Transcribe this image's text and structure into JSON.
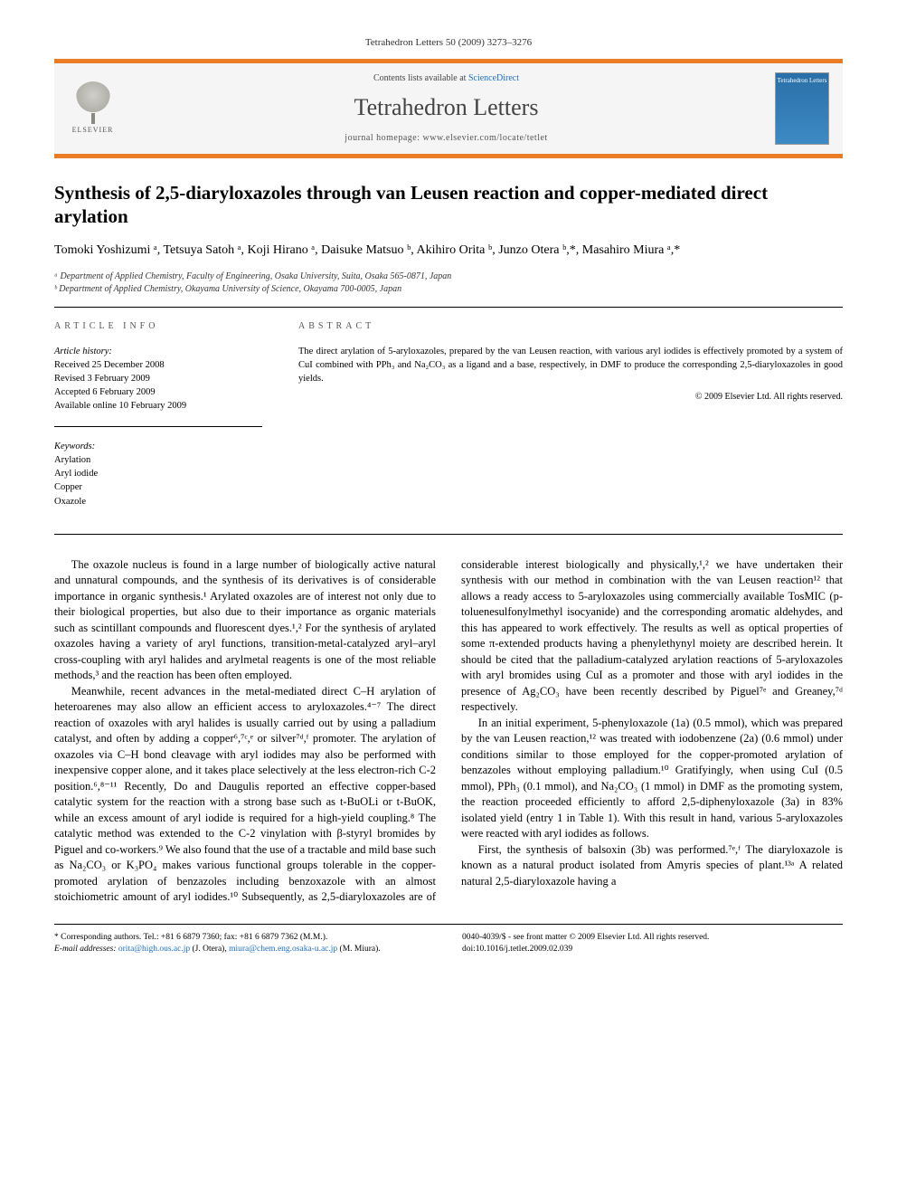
{
  "header": {
    "journal_ref": "Tetrahedron Letters 50 (2009) 3273–3276"
  },
  "banner": {
    "publisher_logo_text": "ELSEVIER",
    "contents_line_prefix": "Contents lists available at ",
    "contents_link": "ScienceDirect",
    "journal_name": "Tetrahedron Letters",
    "homepage_prefix": "journal homepage: ",
    "homepage_url": "www.elsevier.com/locate/tetlet",
    "cover_title": "Tetrahedron Letters",
    "banner_accent_color": "#ea7d25",
    "banner_bg_color": "#f5f5f5",
    "cover_bg_start": "#2a6fa8",
    "cover_bg_end": "#3d8ac5",
    "link_color": "#1d6fc4"
  },
  "article": {
    "title": "Synthesis of 2,5-diaryloxazoles through van Leusen reaction and copper-mediated direct arylation",
    "authors_html": "Tomoki Yoshizumi ᵃ, Tetsuya Satoh ᵃ, Koji Hirano ᵃ, Daisuke Matsuo ᵇ, Akihiro Orita ᵇ, Junzo Otera ᵇ,*, Masahiro Miura ᵃ,*",
    "affiliations": {
      "a": "ᵃ Department of Applied Chemistry, Faculty of Engineering, Osaka University, Suita, Osaka 565-0871, Japan",
      "b": "ᵇ Department of Applied Chemistry, Okayama University of Science, Okayama 700-0005, Japan"
    }
  },
  "info": {
    "heading": "ARTICLE INFO",
    "history_label": "Article history:",
    "received": "Received 25 December 2008",
    "revised": "Revised 3 February 2009",
    "accepted": "Accepted 6 February 2009",
    "online": "Available online 10 February 2009",
    "keywords_label": "Keywords:",
    "keywords": [
      "Arylation",
      "Aryl iodide",
      "Copper",
      "Oxazole"
    ]
  },
  "abstract": {
    "heading": "ABSTRACT",
    "text": "The direct arylation of 5-aryloxazoles, prepared by the van Leusen reaction, with various aryl iodides is effectively promoted by a system of CuI combined with PPh₃ and Na₂CO₃ as a ligand and a base, respectively, in DMF to produce the corresponding 2,5-diaryloxazoles in good yields.",
    "copyright": "© 2009 Elsevier Ltd. All rights reserved."
  },
  "body": {
    "p1": "The oxazole nucleus is found in a large number of biologically active natural and unnatural compounds, and the synthesis of its derivatives is of considerable importance in organic synthesis.¹ Arylated oxazoles are of interest not only due to their biological properties, but also due to their importance as organic materials such as scintillant compounds and fluorescent dyes.¹,² For the synthesis of arylated oxazoles having a variety of aryl functions, transition-metal-catalyzed aryl–aryl cross-coupling with aryl halides and arylmetal reagents is one of the most reliable methods,³ and the reaction has been often employed.",
    "p2": "Meanwhile, recent advances in the metal-mediated direct C–H arylation of heteroarenes may also allow an efficient access to aryloxazoles.⁴⁻⁷ The direct reaction of oxazoles with aryl halides is usually carried out by using a palladium catalyst, and often by adding a copper⁶,⁷ᶜ,ᵉ or silver⁷ᵈ,ᶠ promoter. The arylation of oxazoles via C–H bond cleavage with aryl iodides may also be performed with inexpensive copper alone, and it takes place selectively at the less electron-rich C-2 position.⁶,⁸⁻¹¹ Recently, Do and Daugulis reported an effective copper-based catalytic system for the reaction with a strong base such as t-BuOLi or t-BuOK, while an excess amount of aryl iodide is required for a high-yield coupling.⁸ The catalytic method was extended to the C-2 vinylation with β-styryl bromides by Piguel and co-workers.⁹ We also found that the use of a tractable and mild base such as Na₂CO₃ or K₃PO₄ makes various functional groups tolerable in the copper-promoted arylation of benzazoles including benzoxazole with an almost stoichiometric amount of aryl iodides.¹⁰ Subsequently, as 2,5-diaryloxazoles are of considerable interest biologically and physically,¹,² we have undertaken their synthesis with our method in combination with the van Leusen reaction¹² that allows a ready access to 5-aryloxazoles using commercially available TosMIC (p-toluenesulfonylmethyl isocyanide) and the corresponding aromatic aldehydes, and this has appeared to work effectively. The results as well as optical properties of some π-extended products having a phenylethynyl moiety are described herein. It should be cited that the palladium-catalyzed arylation reactions of 5-aryloxazoles with aryl bromides using CuI as a promoter and those with aryl iodides in the presence of Ag₂CO₃ have been recently described by Piguel⁷ᵉ and Greaney,⁷ᵈ respectively.",
    "p3": "In an initial experiment, 5-phenyloxazole (1a) (0.5 mmol), which was prepared by the van Leusen reaction,¹² was treated with iodobenzene (2a) (0.6 mmol) under conditions similar to those employed for the copper-promoted arylation of benzazoles without employing palladium.¹⁰ Gratifyingly, when using CuI (0.5 mmol), PPh₃ (0.1 mmol), and Na₂CO₃ (1 mmol) in DMF as the promoting system, the reaction proceeded efficiently to afford 2,5-diphenyloxazole (3a) in 83% isolated yield (entry 1 in Table 1). With this result in hand, various 5-aryloxazoles were reacted with aryl iodides as follows.",
    "p4": "First, the synthesis of balsoxin (3b) was performed.⁷ᵉ,ᶠ The diaryloxazole is known as a natural product isolated from Amyris species of plant.¹³ᵃ A related natural 2,5-diaryloxazole having a"
  },
  "footer": {
    "corr_label": "* Corresponding authors. Tel.: +81 6 6879 7360; fax: +81 6 6879 7362 (M.M.).",
    "email_label": "E-mail addresses:",
    "email1": "orita@high.ous.ac.jp",
    "email1_name": "(J. Otera),",
    "email2": "miura@chem.eng.osaka-u.ac.jp",
    "email2_name": "(M. Miura).",
    "copyright_line": "0040-4039/$ - see front matter © 2009 Elsevier Ltd. All rights reserved.",
    "doi": "doi:10.1016/j.tetlet.2009.02.039"
  }
}
